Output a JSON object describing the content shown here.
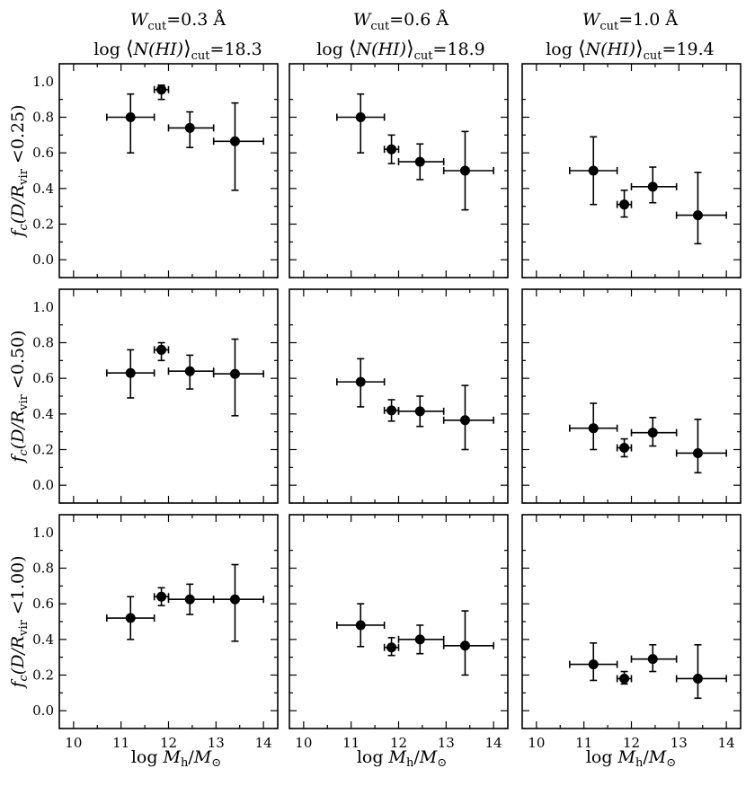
{
  "figure": {
    "col_titles": [
      {
        "w_label": "W",
        "w_sub": "cut",
        "w_value": "=0.3 Å",
        "n_prefix": "log ",
        "n_open": "⟨",
        "n_body": "N(HI)",
        "n_close": "⟩",
        "n_sub": "cut",
        "n_value": "=18.3"
      },
      {
        "w_label": "W",
        "w_sub": "cut",
        "w_value": "=0.6 Å",
        "n_prefix": "log ",
        "n_open": "⟨",
        "n_body": "N(HI)",
        "n_close": "⟩",
        "n_sub": "cut",
        "n_value": "=18.9"
      },
      {
        "w_label": "W",
        "w_sub": "cut",
        "w_value": "=1.0 Å",
        "n_prefix": "log ",
        "n_open": "⟨",
        "n_body": "N(HI)",
        "n_close": "⟩",
        "n_sub": "cut",
        "n_value": "=19.4"
      }
    ],
    "row_ylabels": [
      {
        "pre": "f",
        "pre_sub": "c",
        "mid": "(D/R",
        "mid_sub": "vir",
        "post": " <0.25)"
      },
      {
        "pre": "f",
        "pre_sub": "c",
        "mid": "(D/R",
        "mid_sub": "vir",
        "post": " <0.50)"
      },
      {
        "pre": "f",
        "pre_sub": "c",
        "mid": "(D/R",
        "mid_sub": "vir",
        "post": " <1.00)"
      }
    ],
    "xlabel": {
      "pre": "log ",
      "var": "M",
      "var_sub": "h",
      "slash": "/",
      "var2": "M",
      "var2_sub": "⊙"
    }
  },
  "chart_data": {
    "type": "scatter",
    "xlim": [
      9.7,
      14.3
    ],
    "ylim": [
      -0.1,
      1.1
    ],
    "xticks": [
      10,
      11,
      12,
      13,
      14
    ],
    "yticks": [
      0.0,
      0.2,
      0.4,
      0.6,
      0.8,
      1.0
    ],
    "ytick_labels": [
      "0.0",
      "0.2",
      "0.4",
      "0.6",
      "0.8",
      "1.0"
    ],
    "panels": [
      {
        "row": 0,
        "col": 0,
        "points": [
          {
            "x": 11.2,
            "xlo": 10.7,
            "xhi": 11.7,
            "y": 0.8,
            "ylo": 0.6,
            "yhi": 0.93
          },
          {
            "x": 11.85,
            "xlo": 11.7,
            "xhi": 12.0,
            "y": 0.955,
            "ylo": 0.9,
            "yhi": 0.98
          },
          {
            "x": 12.45,
            "xlo": 12.0,
            "xhi": 12.95,
            "y": 0.74,
            "ylo": 0.63,
            "yhi": 0.83
          },
          {
            "x": 13.4,
            "xlo": 12.95,
            "xhi": 14.0,
            "y": 0.665,
            "ylo": 0.39,
            "yhi": 0.88
          }
        ]
      },
      {
        "row": 0,
        "col": 1,
        "points": [
          {
            "x": 11.2,
            "xlo": 10.7,
            "xhi": 11.7,
            "y": 0.8,
            "ylo": 0.6,
            "yhi": 0.93
          },
          {
            "x": 11.85,
            "xlo": 11.7,
            "xhi": 12.0,
            "y": 0.62,
            "ylo": 0.54,
            "yhi": 0.7
          },
          {
            "x": 12.45,
            "xlo": 12.0,
            "xhi": 12.95,
            "y": 0.55,
            "ylo": 0.45,
            "yhi": 0.65
          },
          {
            "x": 13.4,
            "xlo": 12.95,
            "xhi": 14.0,
            "y": 0.5,
            "ylo": 0.28,
            "yhi": 0.72
          }
        ]
      },
      {
        "row": 0,
        "col": 2,
        "points": [
          {
            "x": 11.2,
            "xlo": 10.7,
            "xhi": 11.7,
            "y": 0.5,
            "ylo": 0.31,
            "yhi": 0.69
          },
          {
            "x": 11.85,
            "xlo": 11.7,
            "xhi": 12.0,
            "y": 0.31,
            "ylo": 0.24,
            "yhi": 0.39
          },
          {
            "x": 12.45,
            "xlo": 12.0,
            "xhi": 12.95,
            "y": 0.41,
            "ylo": 0.32,
            "yhi": 0.52
          },
          {
            "x": 13.4,
            "xlo": 12.95,
            "xhi": 14.0,
            "y": 0.25,
            "ylo": 0.09,
            "yhi": 0.49
          }
        ]
      },
      {
        "row": 1,
        "col": 0,
        "points": [
          {
            "x": 11.2,
            "xlo": 10.7,
            "xhi": 11.7,
            "y": 0.63,
            "ylo": 0.49,
            "yhi": 0.76
          },
          {
            "x": 11.85,
            "xlo": 11.7,
            "xhi": 12.0,
            "y": 0.76,
            "ylo": 0.7,
            "yhi": 0.8
          },
          {
            "x": 12.45,
            "xlo": 12.0,
            "xhi": 12.95,
            "y": 0.64,
            "ylo": 0.54,
            "yhi": 0.73
          },
          {
            "x": 13.4,
            "xlo": 12.95,
            "xhi": 14.0,
            "y": 0.625,
            "ylo": 0.39,
            "yhi": 0.82
          }
        ]
      },
      {
        "row": 1,
        "col": 1,
        "points": [
          {
            "x": 11.2,
            "xlo": 10.7,
            "xhi": 11.7,
            "y": 0.58,
            "ylo": 0.44,
            "yhi": 0.71
          },
          {
            "x": 11.85,
            "xlo": 11.7,
            "xhi": 12.0,
            "y": 0.42,
            "ylo": 0.36,
            "yhi": 0.48
          },
          {
            "x": 12.45,
            "xlo": 12.0,
            "xhi": 12.95,
            "y": 0.415,
            "ylo": 0.33,
            "yhi": 0.5
          },
          {
            "x": 13.4,
            "xlo": 12.95,
            "xhi": 14.0,
            "y": 0.365,
            "ylo": 0.2,
            "yhi": 0.56
          }
        ]
      },
      {
        "row": 1,
        "col": 2,
        "points": [
          {
            "x": 11.2,
            "xlo": 10.7,
            "xhi": 11.7,
            "y": 0.32,
            "ylo": 0.2,
            "yhi": 0.46
          },
          {
            "x": 11.85,
            "xlo": 11.7,
            "xhi": 12.0,
            "y": 0.21,
            "ylo": 0.16,
            "yhi": 0.26
          },
          {
            "x": 12.45,
            "xlo": 12.0,
            "xhi": 12.95,
            "y": 0.295,
            "ylo": 0.22,
            "yhi": 0.38
          },
          {
            "x": 13.4,
            "xlo": 12.95,
            "xhi": 14.0,
            "y": 0.18,
            "ylo": 0.07,
            "yhi": 0.37
          }
        ]
      },
      {
        "row": 2,
        "col": 0,
        "points": [
          {
            "x": 11.2,
            "xlo": 10.7,
            "xhi": 11.7,
            "y": 0.52,
            "ylo": 0.4,
            "yhi": 0.64
          },
          {
            "x": 11.85,
            "xlo": 11.7,
            "xhi": 12.0,
            "y": 0.64,
            "ylo": 0.59,
            "yhi": 0.69
          },
          {
            "x": 12.45,
            "xlo": 12.0,
            "xhi": 12.95,
            "y": 0.625,
            "ylo": 0.54,
            "yhi": 0.71
          },
          {
            "x": 13.4,
            "xlo": 12.95,
            "xhi": 14.0,
            "y": 0.625,
            "ylo": 0.39,
            "yhi": 0.82
          }
        ]
      },
      {
        "row": 2,
        "col": 1,
        "points": [
          {
            "x": 11.2,
            "xlo": 10.7,
            "xhi": 11.7,
            "y": 0.48,
            "ylo": 0.36,
            "yhi": 0.6
          },
          {
            "x": 11.85,
            "xlo": 11.7,
            "xhi": 12.0,
            "y": 0.355,
            "ylo": 0.31,
            "yhi": 0.41
          },
          {
            "x": 12.45,
            "xlo": 12.0,
            "xhi": 12.95,
            "y": 0.4,
            "ylo": 0.32,
            "yhi": 0.48
          },
          {
            "x": 13.4,
            "xlo": 12.95,
            "xhi": 14.0,
            "y": 0.365,
            "ylo": 0.2,
            "yhi": 0.56
          }
        ]
      },
      {
        "row": 2,
        "col": 2,
        "points": [
          {
            "x": 11.2,
            "xlo": 10.7,
            "xhi": 11.7,
            "y": 0.26,
            "ylo": 0.17,
            "yhi": 0.38
          },
          {
            "x": 11.85,
            "xlo": 11.7,
            "xhi": 12.0,
            "y": 0.18,
            "ylo": 0.15,
            "yhi": 0.22
          },
          {
            "x": 12.45,
            "xlo": 12.0,
            "xhi": 12.95,
            "y": 0.29,
            "ylo": 0.22,
            "yhi": 0.37
          },
          {
            "x": 13.4,
            "xlo": 12.95,
            "xhi": 14.0,
            "y": 0.18,
            "ylo": 0.07,
            "yhi": 0.37
          }
        ]
      }
    ]
  }
}
